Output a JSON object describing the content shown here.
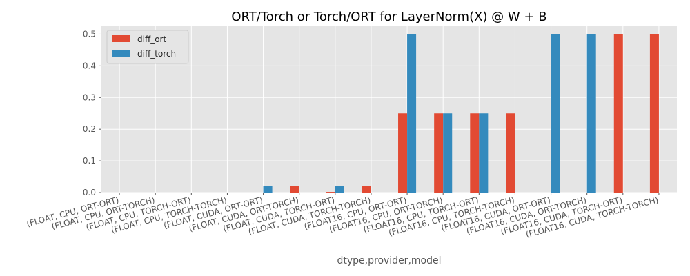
{
  "chart_data": {
    "type": "bar",
    "title": "ORT/Torch or Torch/ORT for LayerNorm(X) @ W + B",
    "xlabel": "dtype,provider,model",
    "ylabel": "",
    "ylim": [
      0,
      0.525
    ],
    "yticks": [
      "0.0",
      "0.1",
      "0.2",
      "0.3",
      "0.4",
      "0.5"
    ],
    "grid": true,
    "legend": "top-left",
    "categories": [
      "(FLOAT, CPU, ORT-ORT)",
      "(FLOAT, CPU, ORT-TORCH)",
      "(FLOAT, CPU, TORCH-ORT)",
      "(FLOAT, CPU, TORCH-TORCH)",
      "(FLOAT, CUDA, ORT-ORT)",
      "(FLOAT, CUDA, ORT-TORCH)",
      "(FLOAT, CUDA, TORCH-ORT)",
      "(FLOAT, CUDA, TORCH-TORCH)",
      "(FLOAT16, CPU, ORT-ORT)",
      "(FLOAT16, CPU, ORT-TORCH)",
      "(FLOAT16, CPU, TORCH-ORT)",
      "(FLOAT16, CPU, TORCH-TORCH)",
      "(FLOAT16, CUDA, ORT-ORT)",
      "(FLOAT16, CUDA, ORT-TORCH)",
      "(FLOAT16, CUDA, TORCH-ORT)",
      "(FLOAT16, CUDA, TORCH-TORCH)"
    ],
    "series": [
      {
        "name": "diff_ort",
        "color": "#e24a33",
        "values": [
          0,
          0,
          0,
          0,
          0,
          0.02,
          0.002,
          0.02,
          0.25,
          0.25,
          0.25,
          0.25,
          0,
          0,
          0.5,
          0.5
        ]
      },
      {
        "name": "diff_torch",
        "color": "#348abd",
        "values": [
          0,
          0,
          0,
          0,
          0.02,
          0,
          0.02,
          0,
          0.5,
          0.25,
          0.25,
          0,
          0.5,
          0.5,
          0,
          0
        ]
      }
    ]
  }
}
